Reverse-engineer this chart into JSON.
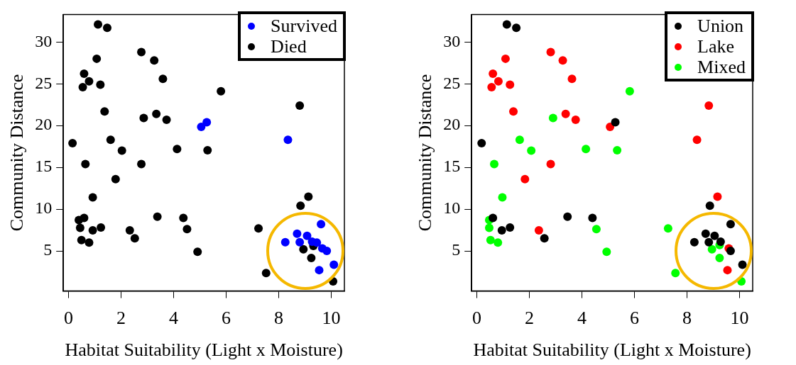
{
  "chart_data": [
    {
      "type": "scatter",
      "xlabel": "Habitat Suitability (Light x Moisture)",
      "ylabel": "Community Distance",
      "xlim": [
        -0.2,
        10.5
      ],
      "ylim": [
        0.2,
        33.3
      ],
      "xticks": [
        0,
        2,
        4,
        6,
        8,
        10
      ],
      "yticks": [
        5,
        10,
        15,
        20,
        25,
        30
      ],
      "grid": false,
      "legend": "top right",
      "marker": "circle",
      "series": [
        {
          "name": "Survived",
          "color": "#0000ff",
          "x": [
            5.05,
            5.26,
            8.35,
            9.61,
            8.25,
            8.7,
            8.8,
            9.08,
            9.27,
            9.45,
            9.66,
            9.83,
            10.1,
            9.54
          ],
          "values": [
            19.85,
            20.4,
            18.3,
            8.2,
            6.05,
            7.05,
            6.05,
            6.8,
            6.1,
            6.0,
            5.3,
            5.0,
            3.35,
            2.7
          ]
        },
        {
          "name": "Died",
          "color": "#000000",
          "x": [
            1.12,
            1.47,
            2.77,
            3.26,
            1.07,
            0.59,
            0.78,
            0.54,
            1.21,
            3.59,
            1.37,
            2.86,
            3.34,
            3.73,
            0.15,
            1.6,
            2.03,
            4.13,
            0.64,
            2.77,
            1.79,
            0.92,
            0.39,
            0.59,
            0.44,
            0.92,
            1.23,
            0.49,
            0.78,
            2.33,
            2.52,
            3.38,
            4.37,
            4.51,
            4.91,
            5.8,
            5.29,
            8.8,
            9.13,
            8.83,
            7.23,
            7.52,
            8.94,
            9.32,
            9.24,
            10.07
          ],
          "values": [
            32.1,
            31.7,
            28.8,
            27.8,
            28.0,
            26.2,
            25.3,
            24.6,
            24.9,
            25.6,
            21.7,
            20.9,
            21.4,
            20.7,
            17.9,
            18.3,
            17.0,
            17.2,
            15.4,
            15.4,
            13.6,
            11.4,
            8.7,
            8.95,
            7.75,
            7.47,
            7.8,
            6.3,
            6.0,
            7.47,
            6.5,
            9.1,
            8.95,
            7.6,
            4.9,
            24.1,
            17.05,
            22.4,
            11.5,
            10.4,
            7.7,
            2.35,
            5.2,
            5.6,
            4.15,
            1.35
          ]
        }
      ]
    },
    {
      "type": "scatter",
      "xlabel": "Habitat Suitability (Light x Moisture)",
      "ylabel": "Community Distance",
      "xlim": [
        -0.2,
        10.5
      ],
      "ylim": [
        0.2,
        33.3
      ],
      "xticks": [
        0,
        2,
        4,
        6,
        8,
        10
      ],
      "yticks": [
        5,
        10,
        15,
        20,
        25,
        30
      ],
      "grid": false,
      "legend": "top right",
      "marker": "circle",
      "series": [
        {
          "name": "Union",
          "color": "#000000",
          "x": [
            1.14,
            1.5,
            0.18,
            0.61,
            0.95,
            1.26,
            2.57,
            3.45,
            4.4,
            5.27,
            8.87,
            9.66,
            8.28,
            8.71,
            8.83,
            9.05,
            9.28,
            9.66,
            10.11
          ],
          "values": [
            32.1,
            31.7,
            17.9,
            8.95,
            7.47,
            7.8,
            6.5,
            9.1,
            8.95,
            20.4,
            10.4,
            8.2,
            6.05,
            7.05,
            6.05,
            6.8,
            6.1,
            5.0,
            3.35
          ]
        },
        {
          "name": "Lake",
          "color": "#ff0000",
          "x": [
            2.81,
            3.27,
            1.09,
            0.61,
            0.82,
            0.56,
            1.26,
            3.62,
            1.39,
            3.38,
            3.76,
            2.81,
            1.83,
            2.36,
            5.07,
            8.83,
            8.38,
            9.16,
            9.59,
            9.54
          ],
          "values": [
            28.8,
            27.8,
            28.0,
            26.2,
            25.3,
            24.6,
            24.9,
            25.6,
            21.7,
            21.4,
            20.7,
            15.4,
            13.6,
            7.47,
            19.85,
            22.4,
            18.3,
            11.5,
            5.3,
            2.7
          ]
        },
        {
          "name": "Mixed",
          "color": "#00ff00",
          "x": [
            2.9,
            1.63,
            2.07,
            4.15,
            0.66,
            0.97,
            0.47,
            0.47,
            0.52,
            0.8,
            4.55,
            4.94,
            5.82,
            5.34,
            7.28,
            7.56,
            9.24,
            8.95,
            9.24,
            10.07
          ],
          "values": [
            20.9,
            18.3,
            17.0,
            17.2,
            15.4,
            11.4,
            8.7,
            7.75,
            6.3,
            6.0,
            7.6,
            4.9,
            24.1,
            17.05,
            7.7,
            2.35,
            5.7,
            5.2,
            4.15,
            1.35
          ]
        }
      ]
    }
  ]
}
